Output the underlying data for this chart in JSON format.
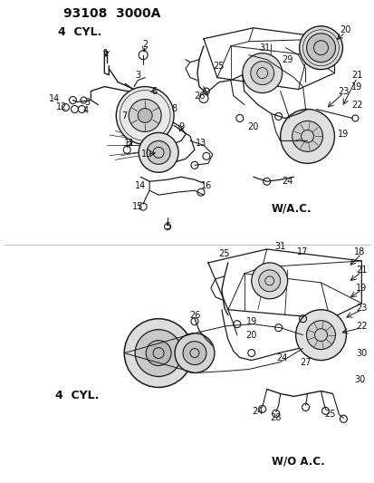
{
  "bg_color": "#ffffff",
  "fig_width": 4.14,
  "fig_height": 5.33,
  "dpi": 100,
  "title": "93108  3000A",
  "label_4cyl_top": "4  CYL.",
  "label_wac": "W/A.C.",
  "label_4cyl_bot": "4  CYL.",
  "label_woac": "W/O A.C.",
  "line_color": "#1a1a1a",
  "text_color": "#111111",
  "bg_gray": "#f5f5f2"
}
